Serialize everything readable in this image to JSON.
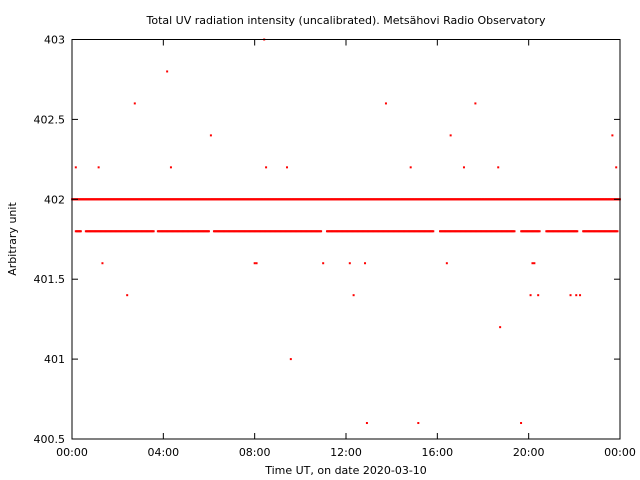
{
  "chart_data": {
    "type": "scatter",
    "title": "Total UV radiation intensity (uncalibrated). Metsähovi Radio Observatory",
    "xlabel": "Time UT, on date 2020-03-10",
    "ylabel": "Arbitrary unit",
    "xlim": [
      "00:00",
      "24:00"
    ],
    "ylim": [
      400.5,
      403
    ],
    "x_ticks": [
      "00:00",
      "04:00",
      "08:00",
      "12:00",
      "16:00",
      "20:00",
      "00:00"
    ],
    "y_ticks": [
      "400.5",
      "401",
      "401.5",
      "402",
      "402.5",
      "403"
    ],
    "marker_color": "#ff0000",
    "grid": false,
    "series": [
      {
        "values_note": "",
        "points": [
          [
            "00:00",
            402.0
          ],
          [
            "24:00",
            402.0
          ],
          [
            "00:10",
            401.8
          ],
          [
            "23:55",
            401.8
          ],
          [
            "00:10",
            402.2
          ],
          [
            "01:10",
            402.2
          ],
          [
            "01:20",
            401.6
          ],
          [
            "02:25",
            401.4
          ],
          [
            "02:45",
            402.6
          ],
          [
            "04:10",
            402.8
          ],
          [
            "04:20",
            402.2
          ],
          [
            "06:05",
            402.4
          ],
          [
            "08:00",
            401.6
          ],
          [
            "08:05",
            401.6
          ],
          [
            "08:25",
            403.0
          ],
          [
            "08:30",
            402.2
          ],
          [
            "09:25",
            402.2
          ],
          [
            "09:35",
            401.0
          ],
          [
            "11:00",
            401.6
          ],
          [
            "12:10",
            401.6
          ],
          [
            "12:20",
            401.4
          ],
          [
            "12:50",
            401.6
          ],
          [
            "12:55",
            400.6
          ],
          [
            "13:45",
            402.6
          ],
          [
            "14:50",
            402.2
          ],
          [
            "15:10",
            400.6
          ],
          [
            "16:25",
            401.6
          ],
          [
            "16:35",
            402.4
          ],
          [
            "17:10",
            402.2
          ],
          [
            "17:40",
            402.6
          ],
          [
            "18:40",
            402.2
          ],
          [
            "18:45",
            401.2
          ],
          [
            "19:40",
            400.6
          ],
          [
            "20:05",
            401.4
          ],
          [
            "20:10",
            401.6
          ],
          [
            "20:15",
            401.6
          ],
          [
            "20:25",
            401.4
          ],
          [
            "21:50",
            401.4
          ],
          [
            "22:05",
            401.4
          ],
          [
            "22:15",
            401.4
          ],
          [
            "23:40",
            402.4
          ],
          [
            "23:50",
            402.2
          ]
        ]
      }
    ]
  }
}
